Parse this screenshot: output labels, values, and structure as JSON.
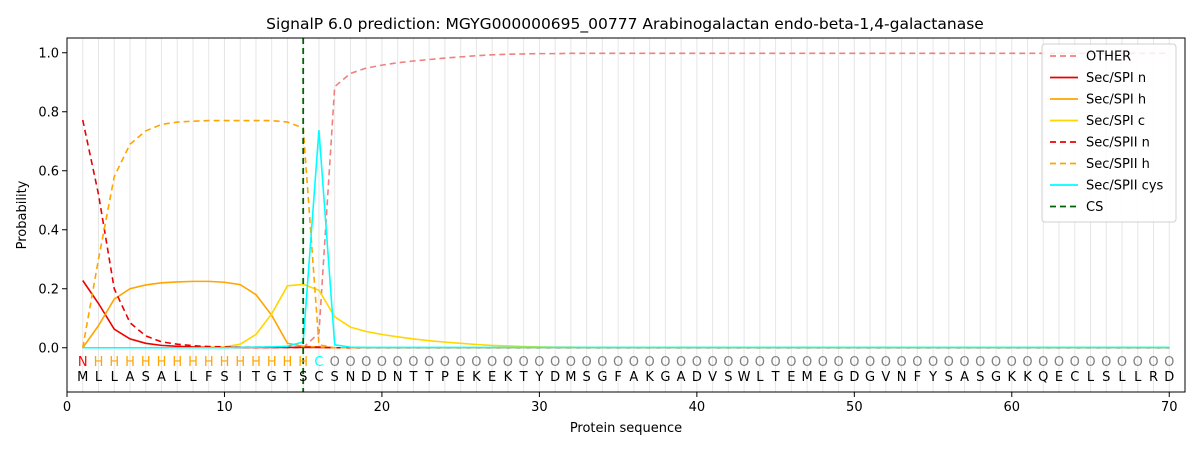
{
  "chart_data": {
    "type": "line",
    "title": "SignalP 6.0 prediction: MGYG000000695_00777 Arabinogalactan endo-beta-1,4-galactanase",
    "xlabel": "Protein sequence",
    "ylabel": "Probability",
    "xlim": [
      0,
      71
    ],
    "ylim": [
      -0.15,
      1.05
    ],
    "xticks": [
      0,
      10,
      20,
      30,
      40,
      50,
      60,
      70
    ],
    "yticks": [
      0.0,
      0.2,
      0.4,
      0.6,
      0.8,
      1.0
    ],
    "ytick_labels": [
      "0.0",
      "0.2",
      "0.4",
      "0.6",
      "0.8",
      "1.0"
    ],
    "legend_position": "top-right",
    "grid": "vertical lines at each residue",
    "sequence": [
      "M",
      "L",
      "L",
      "A",
      "S",
      "A",
      "L",
      "L",
      "F",
      "S",
      "I",
      "T",
      "G",
      "T",
      "S",
      "C",
      "S",
      "N",
      "D",
      "D",
      "N",
      "T",
      "T",
      "P",
      "E",
      "K",
      "E",
      "K",
      "T",
      "Y",
      "D",
      "M",
      "S",
      "G",
      "F",
      "A",
      "K",
      "G",
      "A",
      "D",
      "V",
      "S",
      "W",
      "L",
      "T",
      "E",
      "M",
      "E",
      "G",
      "D",
      "G",
      "V",
      "N",
      "F",
      "Y",
      "S",
      "A",
      "S",
      "G",
      "K",
      "K",
      "Q",
      "E",
      "C",
      "L",
      "S",
      "L",
      "L",
      "R",
      "D"
    ],
    "region_labels": [
      "N",
      "H",
      "H",
      "H",
      "H",
      "H",
      "H",
      "H",
      "H",
      "H",
      "H",
      "H",
      "H",
      "H",
      "H",
      "C",
      "O",
      "O",
      "O",
      "O",
      "O",
      "O",
      "O",
      "O",
      "O",
      "O",
      "O",
      "O",
      "O",
      "O",
      "O",
      "O",
      "O",
      "O",
      "O",
      "O",
      "O",
      "O",
      "O",
      "O",
      "O",
      "O",
      "O",
      "O",
      "O",
      "O",
      "O",
      "O",
      "O",
      "O",
      "O",
      "O",
      "O",
      "O",
      "O",
      "O",
      "O",
      "O",
      "O",
      "O",
      "O",
      "O",
      "O",
      "O",
      "O",
      "O",
      "O",
      "O",
      "O",
      "O"
    ],
    "region_colors": {
      "N": "#ff0000",
      "H": "#ffa500",
      "C": "#00ffff",
      "O": "#808080"
    },
    "cs_position": 15,
    "series": [
      {
        "name": "OTHER",
        "color": "#f08080",
        "dash": "6,4",
        "values": [
          0.0,
          0.0,
          0.0,
          0.0,
          0.0,
          0.0,
          0.0,
          0.0,
          0.0,
          0.0,
          0.0,
          0.0,
          0.0,
          0.0,
          0.0,
          0.05,
          0.885,
          0.93,
          0.948,
          0.958,
          0.966,
          0.972,
          0.977,
          0.982,
          0.986,
          0.99,
          0.993,
          0.995,
          0.996,
          0.997,
          0.997,
          0.998,
          0.998,
          0.998,
          0.998,
          0.998,
          0.998,
          0.998,
          0.998,
          0.998,
          0.998,
          0.998,
          0.998,
          0.998,
          0.998,
          0.998,
          0.998,
          0.998,
          0.998,
          0.998,
          0.998,
          0.998,
          0.998,
          0.998,
          0.998,
          0.998,
          0.998,
          0.998,
          0.998,
          0.998,
          0.998,
          0.998,
          0.998,
          0.998,
          0.998,
          0.998,
          0.998,
          0.998,
          0.998,
          0.998
        ]
      },
      {
        "name": "Sec/SPI n",
        "color": "#ee0000",
        "dash": "",
        "values": [
          0.228,
          0.15,
          0.063,
          0.03,
          0.015,
          0.008,
          0.005,
          0.003,
          0.002,
          0.002,
          0.001,
          0.001,
          0.001,
          0.001,
          0.001,
          0.001,
          0.0,
          0.0,
          0.0,
          0.0,
          0.0,
          0.0,
          0.0,
          0.0,
          0.0,
          0.0,
          0.0,
          0.0,
          0.0,
          0.0,
          0.0,
          0.0,
          0.0,
          0.0,
          0.0,
          0.0,
          0.0,
          0.0,
          0.0,
          0.0,
          0.0,
          0.0,
          0.0,
          0.0,
          0.0,
          0.0,
          0.0,
          0.0,
          0.0,
          0.0,
          0.0,
          0.0,
          0.0,
          0.0,
          0.0,
          0.0,
          0.0,
          0.0,
          0.0,
          0.0,
          0.0,
          0.0,
          0.0,
          0.0,
          0.0,
          0.0,
          0.0,
          0.0,
          0.0,
          0.0
        ]
      },
      {
        "name": "Sec/SPI h",
        "color": "#ffa500",
        "dash": "",
        "values": [
          0.0,
          0.075,
          0.165,
          0.2,
          0.213,
          0.22,
          0.223,
          0.225,
          0.225,
          0.222,
          0.214,
          0.18,
          0.11,
          0.015,
          0.005,
          0.003,
          0.0,
          0.0,
          0.0,
          0.0,
          0.0,
          0.0,
          0.0,
          0.0,
          0.0,
          0.0,
          0.0,
          0.0,
          0.0,
          0.0,
          0.0,
          0.0,
          0.0,
          0.0,
          0.0,
          0.0,
          0.0,
          0.0,
          0.0,
          0.0,
          0.0,
          0.0,
          0.0,
          0.0,
          0.0,
          0.0,
          0.0,
          0.0,
          0.0,
          0.0,
          0.0,
          0.0,
          0.0,
          0.0,
          0.0,
          0.0,
          0.0,
          0.0,
          0.0,
          0.0,
          0.0,
          0.0,
          0.0,
          0.0,
          0.0,
          0.0,
          0.0,
          0.0,
          0.0,
          0.0
        ]
      },
      {
        "name": "Sec/SPI c",
        "color": "#ffd700",
        "dash": "",
        "values": [
          0.0,
          0.0,
          0.0,
          0.0,
          0.0,
          0.0,
          0.0,
          0.0,
          0.001,
          0.003,
          0.012,
          0.045,
          0.115,
          0.21,
          0.215,
          0.195,
          0.105,
          0.07,
          0.055,
          0.045,
          0.037,
          0.03,
          0.024,
          0.019,
          0.015,
          0.011,
          0.008,
          0.006,
          0.004,
          0.003,
          0.002,
          0.002,
          0.001,
          0.001,
          0.001,
          0.001,
          0.001,
          0.001,
          0.001,
          0.001,
          0.001,
          0.001,
          0.001,
          0.001,
          0.001,
          0.001,
          0.001,
          0.001,
          0.001,
          0.001,
          0.001,
          0.001,
          0.001,
          0.001,
          0.001,
          0.001,
          0.001,
          0.001,
          0.001,
          0.001,
          0.001,
          0.001,
          0.001,
          0.001,
          0.001,
          0.001,
          0.001,
          0.001,
          0.001,
          0.001
        ]
      },
      {
        "name": "Sec/SPII n",
        "color": "#ee0000",
        "dash": "6,4",
        "values": [
          0.772,
          0.52,
          0.2,
          0.085,
          0.04,
          0.02,
          0.012,
          0.007,
          0.004,
          0.003,
          0.002,
          0.002,
          0.002,
          0.002,
          0.002,
          0.002,
          0.0,
          0.0,
          0.0,
          0.0,
          0.0,
          0.0,
          0.0,
          0.0,
          0.0,
          0.0,
          0.0,
          0.0,
          0.0,
          0.0,
          0.0,
          0.0,
          0.0,
          0.0,
          0.0,
          0.0,
          0.0,
          0.0,
          0.0,
          0.0,
          0.0,
          0.0,
          0.0,
          0.0,
          0.0,
          0.0,
          0.0,
          0.0,
          0.0,
          0.0,
          0.0,
          0.0,
          0.0,
          0.0,
          0.0,
          0.0,
          0.0,
          0.0,
          0.0,
          0.0,
          0.0,
          0.0,
          0.0,
          0.0,
          0.0,
          0.0,
          0.0,
          0.0,
          0.0,
          0.0
        ]
      },
      {
        "name": "Sec/SPII h",
        "color": "#ffa500",
        "dash": "6,4",
        "values": [
          0.0,
          0.3,
          0.58,
          0.69,
          0.735,
          0.757,
          0.765,
          0.768,
          0.77,
          0.77,
          0.77,
          0.77,
          0.77,
          0.765,
          0.745,
          0.01,
          0.0,
          0.0,
          0.0,
          0.0,
          0.0,
          0.0,
          0.0,
          0.0,
          0.0,
          0.0,
          0.0,
          0.0,
          0.0,
          0.0,
          0.0,
          0.0,
          0.0,
          0.0,
          0.0,
          0.0,
          0.0,
          0.0,
          0.0,
          0.0,
          0.0,
          0.0,
          0.0,
          0.0,
          0.0,
          0.0,
          0.0,
          0.0,
          0.0,
          0.0,
          0.0,
          0.0,
          0.0,
          0.0,
          0.0,
          0.0,
          0.0,
          0.0,
          0.0,
          0.0,
          0.0,
          0.0,
          0.0,
          0.0,
          0.0,
          0.0,
          0.0,
          0.0,
          0.0,
          0.0
        ]
      },
      {
        "name": "Sec/SPII cys",
        "color": "#00ffff",
        "dash": "",
        "values": [
          0.0,
          0.0,
          0.0,
          0.0,
          0.0,
          0.0,
          0.0,
          0.0,
          0.0,
          0.0,
          0.001,
          0.002,
          0.003,
          0.005,
          0.02,
          0.738,
          0.01,
          0.002,
          0.001,
          0.001,
          0.001,
          0.001,
          0.001,
          0.001,
          0.001,
          0.001,
          0.001,
          0.001,
          0.001,
          0.001,
          0.001,
          0.001,
          0.001,
          0.001,
          0.001,
          0.001,
          0.001,
          0.001,
          0.001,
          0.001,
          0.001,
          0.001,
          0.001,
          0.001,
          0.001,
          0.001,
          0.001,
          0.001,
          0.001,
          0.001,
          0.001,
          0.001,
          0.001,
          0.001,
          0.001,
          0.001,
          0.001,
          0.001,
          0.001,
          0.001,
          0.001,
          0.001,
          0.001,
          0.001,
          0.001,
          0.001,
          0.001,
          0.001,
          0.001,
          0.001
        ]
      },
      {
        "name": "CS",
        "color": "#006400",
        "dash": "6,4",
        "values": []
      }
    ]
  }
}
